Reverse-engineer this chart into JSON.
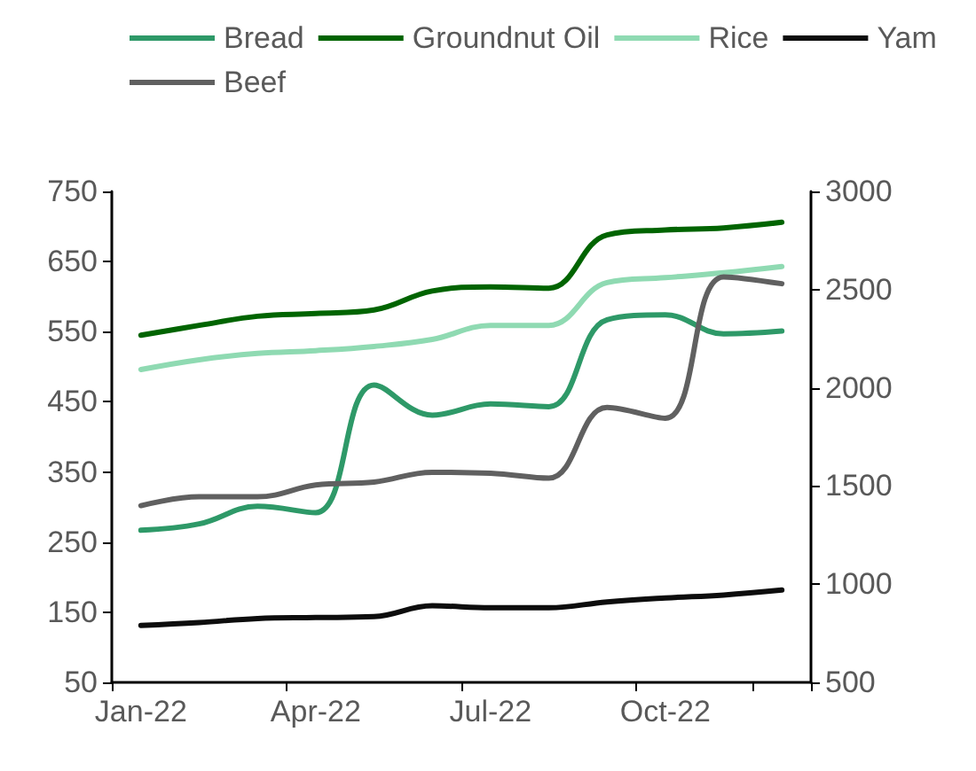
{
  "chart_data": {
    "type": "line",
    "categories": [
      "Jan-22",
      null,
      null,
      "Apr-22",
      null,
      null,
      "Jul-22",
      null,
      null,
      "Oct-22",
      null,
      null
    ],
    "series": [
      {
        "name": "Bread",
        "color": "#2e9968",
        "values": [
          267,
          276,
          301,
          292,
          474,
          431,
          447,
          443,
          567,
          574,
          547,
          551
        ]
      },
      {
        "name": "Groundnut Oil",
        "color": "#006400",
        "values": [
          545,
          559,
          572,
          576,
          581,
          608,
          614,
          612,
          688,
          695,
          698,
          706
        ]
      },
      {
        "name": "Rice",
        "color": "#8fdab2",
        "values": [
          496,
          510,
          519,
          523,
          529,
          539,
          559,
          559,
          620,
          627,
          634,
          643
        ]
      },
      {
        "name": "Yam",
        "color": "#0d0d0d",
        "axis": "y2",
        "values": [
          790,
          805,
          825,
          830,
          835,
          890,
          880,
          880,
          910,
          930,
          945,
          970
        ]
      },
      {
        "name": "Beef",
        "color": "#606060",
        "axis": "y2",
        "values": [
          1400,
          1445,
          1445,
          1505,
          1520,
          1570,
          1565,
          1540,
          1900,
          1845,
          2565,
          2530
        ]
      }
    ],
    "ylim": [
      50,
      750
    ],
    "yticks": [
      50,
      150,
      250,
      350,
      450,
      550,
      650,
      750
    ],
    "y2lim": [
      500,
      3000
    ],
    "y2ticks": [
      500,
      1000,
      1500,
      2000,
      2500,
      3000
    ],
    "legend": "top",
    "grid": false,
    "marker": "none",
    "line_style": "solid"
  }
}
